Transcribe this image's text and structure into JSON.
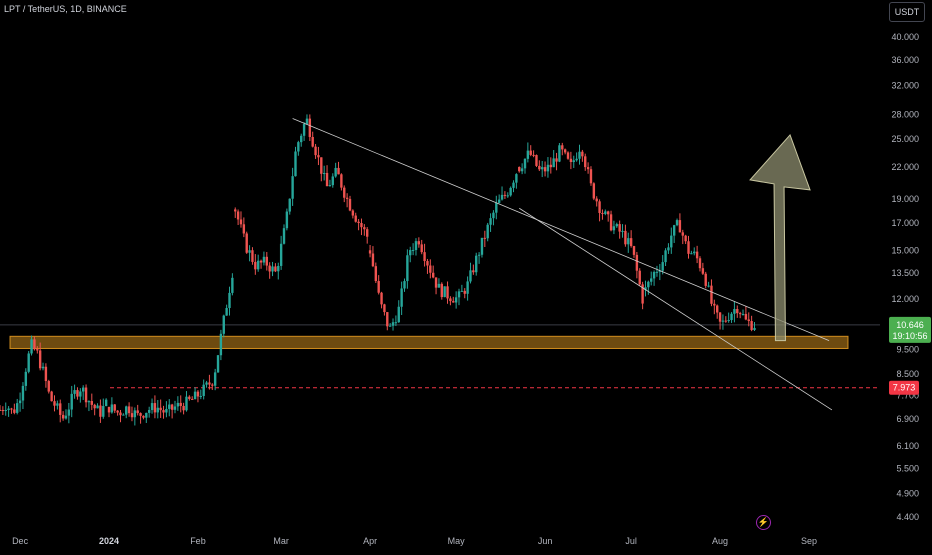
{
  "header": {
    "symbol_title": "LPT / TetherUS, 1D, BINANCE",
    "currency_button": "USDT"
  },
  "icons": {
    "event": "lightning-icon"
  },
  "colors": {
    "up": "#26a69a",
    "down": "#ef5350",
    "zone": "#f5a623",
    "arrow": "#8c8c6e",
    "support": "#f23645",
    "price_label": "#4caf50",
    "channel": "#cfcfcf"
  },
  "chart_data": {
    "type": "candlestick",
    "scale": "log",
    "y_ticks": [
      "40.000",
      "36.000",
      "32.000",
      "28.000",
      "25.000",
      "22.000",
      "19.000",
      "17.000",
      "15.000",
      "13.500",
      "12.000",
      "10.646",
      "9.500",
      "8.500",
      "7.973",
      "7.700",
      "6.900",
      "6.100",
      "5.500",
      "4.900",
      "4.400"
    ],
    "x_ticks": [
      "Dec",
      "2024",
      "Feb",
      "Mar",
      "Apr",
      "May",
      "Jun",
      "Jul",
      "Aug",
      "Sep"
    ],
    "last_price": {
      "value": "10.646",
      "countdown": "19:10:56"
    },
    "support_level": {
      "value": "7.973"
    },
    "demand_zone": {
      "low": 9.55,
      "high": 10.1
    },
    "channel_upper": [
      {
        "date": "2024-03-05",
        "price": 27.5
      },
      {
        "date": "2024-09-08",
        "price": 9.9
      }
    ],
    "channel_lower": [
      {
        "date": "2024-05-23",
        "price": 18.2
      },
      {
        "date": "2024-09-09",
        "price": 7.2
      }
    ],
    "projection_arrow": {
      "from": {
        "date": "2024-08-21",
        "price": 9.9
      },
      "to": {
        "date": "2024-08-24",
        "price": 25.5
      }
    },
    "series": [
      {
        "date_range": [
          "2023-11-24",
          "2023-12-31"
        ],
        "close_path": [
          7.2,
          7.4,
          7.1,
          7.5,
          8.6,
          9.7,
          9.3,
          8.5,
          7.6,
          7.3,
          6.9,
          7.3,
          7.8,
          8.0,
          7.6,
          7.3,
          7.1,
          7.4
        ]
      },
      {
        "date_range": [
          "2024-01-01",
          "2024-02-13"
        ],
        "close_path": [
          7.3,
          7.1,
          7.3,
          7.0,
          7.2,
          7.3,
          7.1,
          7.3,
          7.4,
          7.6,
          7.9,
          8.3,
          10.6,
          13.6
        ]
      },
      {
        "date_range": [
          "2024-02-14",
          "2024-03-31"
        ],
        "close_path": [
          18.1,
          15.4,
          14.0,
          14.2,
          13.5,
          17.0,
          24.0,
          27.5,
          23.5,
          20.0,
          21.5,
          19.0,
          17.3,
          16.0
        ]
      },
      {
        "date_range": [
          "2024-04-01",
          "2024-05-22"
        ],
        "close_path": [
          15.0,
          11.8,
          10.4,
          11.5,
          15.0,
          15.8,
          14.0,
          12.6,
          12.2,
          12.0,
          12.8,
          14.6,
          16.5,
          18.5,
          19.5,
          21.5
        ]
      },
      {
        "date_range": [
          "2024-05-23",
          "2024-07-05"
        ],
        "close_path": [
          22.0,
          23.5,
          21.5,
          22.0,
          23.8,
          22.0,
          24.5,
          20.0,
          18.0,
          16.8,
          16.2,
          15.0,
          12.0
        ]
      },
      {
        "date_range": [
          "2024-07-06",
          "2024-08-13"
        ],
        "close_path": [
          12.5,
          13.5,
          14.2,
          16.0,
          17.0,
          15.0,
          14.6,
          13.5,
          11.5,
          10.6,
          11.2,
          11.6,
          10.8,
          10.65
        ]
      }
    ]
  }
}
